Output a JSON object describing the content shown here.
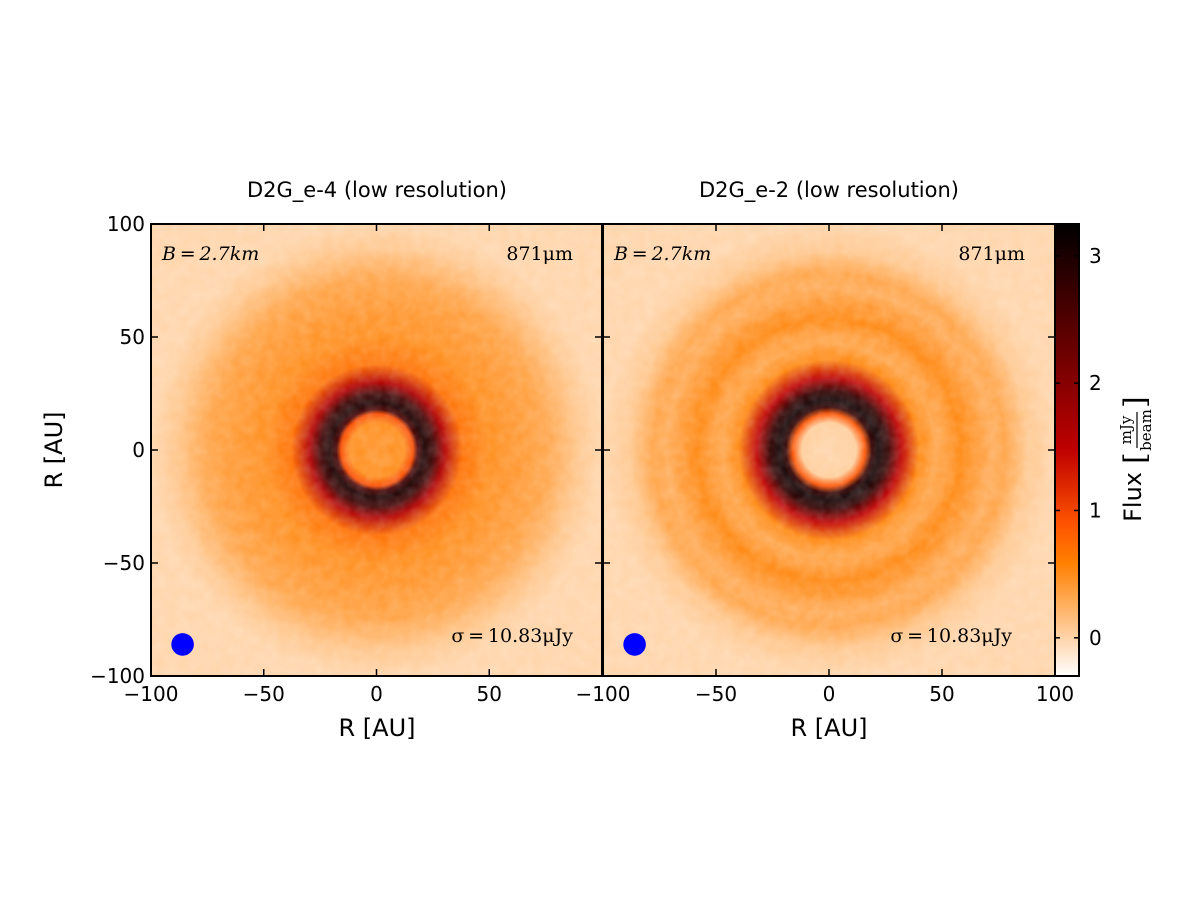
{
  "chart_data": [
    {
      "type": "heatmap",
      "title": "D2G_e-4 (low resolution)",
      "xlabel": "R [AU]",
      "ylabel": "R [AU]",
      "xlim": [
        -100,
        100
      ],
      "ylim": [
        -100,
        100
      ],
      "xticks": [
        -100,
        -50,
        0,
        50
      ],
      "xtick_labels": [
        "−100",
        "−50",
        "0",
        "50"
      ],
      "yticks": [
        100,
        50,
        0,
        -50,
        -100
      ],
      "ytick_labels": [
        "100",
        "50",
        "0",
        "−50",
        "−100"
      ],
      "annotations": {
        "baseline": "B = 2.7km",
        "wavelength": "871μm",
        "noise": "σ = 10.83μJy"
      },
      "beam": {
        "center_au": [
          -86,
          -86
        ],
        "diameter_au": 10,
        "color": "#0000ff"
      },
      "radial_profile": {
        "r_au": [
          0,
          12,
          16,
          18,
          21,
          25,
          30,
          38,
          50,
          60,
          75,
          90,
          100
        ],
        "flux_mjy_per_beam": [
          0.45,
          0.5,
          0.95,
          2.6,
          3.0,
          2.7,
          1.6,
          0.7,
          0.5,
          0.45,
          0.35,
          0.1,
          0.0
        ]
      }
    },
    {
      "type": "heatmap",
      "title": "D2G_e-2 (low resolution)",
      "xlabel": "R [AU]",
      "xlim": [
        -100,
        100
      ],
      "ylim": [
        -100,
        100
      ],
      "xticks": [
        -100,
        -50,
        0,
        50,
        100
      ],
      "xtick_labels": [
        "−100",
        "−50",
        "0",
        "50",
        "100"
      ],
      "annotations": {
        "baseline": "B = 2.7km",
        "wavelength": "871μm",
        "noise": "σ = 10.83μJy"
      },
      "beam": {
        "center_au": [
          -86,
          -86
        ],
        "diameter_au": 10,
        "color": "#0000ff"
      },
      "radial_profile": {
        "r_au": [
          0,
          12,
          16,
          19,
          22,
          26,
          32,
          40,
          47,
          52,
          58,
          64,
          72,
          78,
          88,
          100
        ],
        "flux_mjy_per_beam": [
          0.0,
          0.05,
          0.9,
          2.8,
          3.1,
          2.8,
          1.5,
          0.55,
          0.35,
          0.4,
          0.55,
          0.45,
          0.3,
          0.35,
          0.1,
          0.0
        ]
      }
    }
  ],
  "colorbar": {
    "label": "Flux",
    "unit_num": "mJy",
    "unit_den": "beam",
    "range": [
      -0.3,
      3.25
    ],
    "ticks": [
      0,
      1,
      2,
      3
    ],
    "tick_labels": [
      "0",
      "1",
      "2",
      "3"
    ],
    "colormap": "gist_heat_r"
  }
}
